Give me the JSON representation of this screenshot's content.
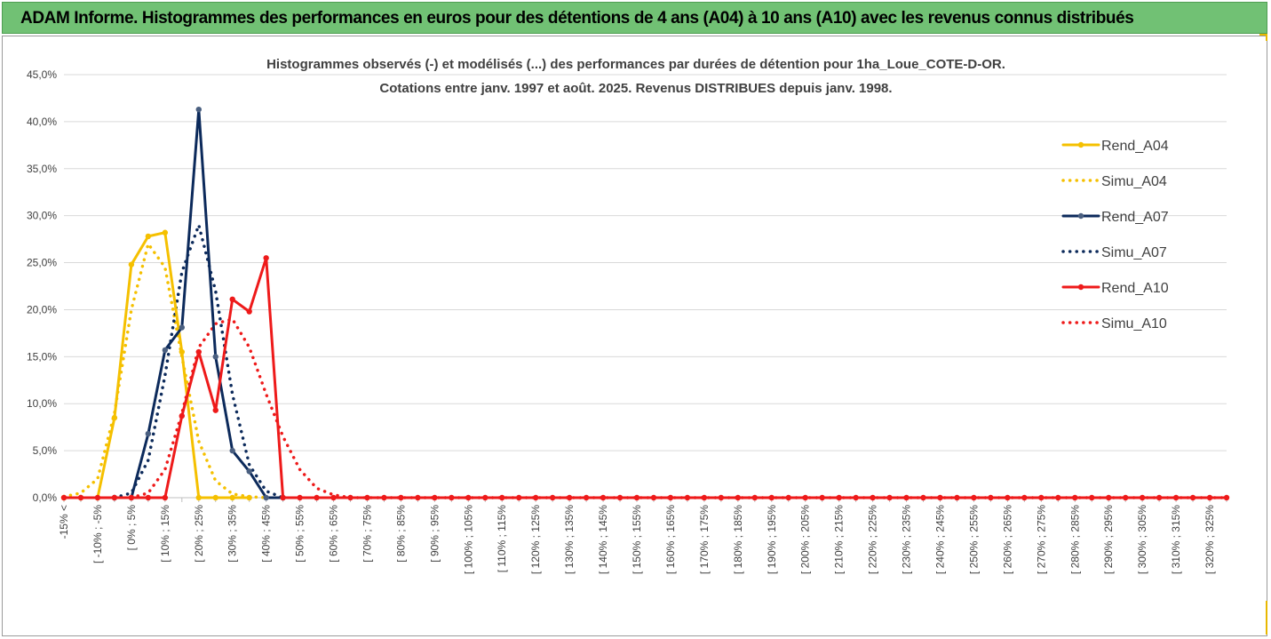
{
  "banner": {
    "title": "ADAM Informe. Histogrammes des performances en euros pour des détentions de 4 ans (A04) à 10 ans (A10) avec les revenus connus distribués"
  },
  "chart_data": {
    "type": "line",
    "title": "Histogrammes observés (-) et modélisés (...) des performances par durées de détention pour 1ha_Loue_COTE-D-OR.",
    "subtitle": "Cotations entre janv. 1997 et août. 2025. Revenus DISTRIBUES depuis janv. 1998.",
    "xlabel": "",
    "ylabel": "",
    "ylim": [
      0,
      45
    ],
    "y_ticks": [
      "0,0%",
      "5,0%",
      "10,0%",
      "15,0%",
      "20,0%",
      "25,0%",
      "30,0%",
      "35,0%",
      "40,0%",
      "45,0%"
    ],
    "grid": true,
    "legend_position": "right",
    "categories": [
      "-15% <",
      "[ -10% ; -5%",
      "[ 0% ; 5%",
      "[ 10% ; 15%",
      "[ 20% ; 25%",
      "[ 30% ; 35%",
      "[ 40% ; 45%",
      "[ 50% ; 55%",
      "[ 60% ; 65%",
      "[ 70% ; 75%",
      "[ 80% ; 85%",
      "[ 90% ; 95%",
      "[ 100% ; 105%",
      "[ 110% ; 115%",
      "[ 120% ; 125%",
      "[ 130% ; 135%",
      "[ 140% ; 145%",
      "[ 150% ; 155%",
      "[ 160% ; 165%",
      "[ 170% ; 175%",
      "[ 180% ; 185%",
      "[ 190% ; 195%",
      "[ 200% ; 205%",
      "[ 210% ; 215%",
      "[ 220% ; 225%",
      "[ 230% ; 235%",
      "[ 240% ; 245%",
      "[ 250% ; 255%",
      "[ 260% ; 265%",
      "[ 270% ; 275%",
      "[ 280% ; 285%",
      "[ 290% ; 295%",
      "[ 300% ; 305%",
      "[ 310% ; 315%",
      "[ 320% ; 325%"
    ],
    "x_values": [
      -15,
      -10,
      -5,
      0,
      5,
      10,
      15,
      20,
      25,
      30,
      35,
      40,
      45,
      50,
      55,
      60,
      65,
      70,
      75,
      80,
      85,
      90,
      95,
      100,
      105,
      110,
      115,
      120,
      125,
      130,
      135,
      140,
      145,
      150,
      155,
      160,
      165,
      170,
      175,
      180,
      185,
      190,
      195,
      200,
      205,
      210,
      215,
      220,
      225,
      230,
      235,
      240,
      245,
      250,
      255,
      260,
      265,
      270,
      275,
      280,
      285,
      290,
      295,
      300,
      305,
      310,
      315,
      320,
      325,
      330
    ],
    "series": [
      {
        "name": "Rend_A04",
        "color": "#f5c000",
        "style": "solid",
        "markers": true,
        "points": [
          [
            -15,
            0
          ],
          [
            -10,
            0
          ],
          [
            -5,
            0
          ],
          [
            0,
            8.5
          ],
          [
            5,
            24.8
          ],
          [
            10,
            27.8
          ],
          [
            15,
            28.2
          ],
          [
            20,
            15.5
          ],
          [
            25,
            0
          ],
          [
            30,
            0
          ],
          [
            35,
            0
          ],
          [
            40,
            0
          ]
        ]
      },
      {
        "name": "Simu_A04",
        "color": "#f5c000",
        "style": "dotted",
        "markers": false,
        "points": [
          [
            -15,
            0.1
          ],
          [
            -10,
            0.5
          ],
          [
            -5,
            2
          ],
          [
            0,
            9
          ],
          [
            5,
            20
          ],
          [
            10,
            27
          ],
          [
            15,
            24.5
          ],
          [
            20,
            15
          ],
          [
            25,
            6
          ],
          [
            30,
            1.8
          ],
          [
            35,
            0.4
          ],
          [
            40,
            0.1
          ],
          [
            45,
            0
          ]
        ]
      },
      {
        "name": "Rend_A07",
        "color": "#0c2a5b",
        "style": "solid",
        "markers": true,
        "points": [
          [
            0,
            0
          ],
          [
            5,
            0
          ],
          [
            10,
            6.8
          ],
          [
            15,
            15.7
          ],
          [
            20,
            18.1
          ],
          [
            25,
            41.3
          ],
          [
            30,
            15
          ],
          [
            35,
            5
          ],
          [
            40,
            2.8
          ],
          [
            45,
            0
          ],
          [
            50,
            0
          ]
        ]
      },
      {
        "name": "Simu_A07",
        "color": "#0c2a5b",
        "style": "dotted",
        "markers": false,
        "points": [
          [
            0,
            0
          ],
          [
            5,
            0.5
          ],
          [
            10,
            4
          ],
          [
            15,
            13
          ],
          [
            20,
            24
          ],
          [
            25,
            29
          ],
          [
            30,
            22
          ],
          [
            35,
            11
          ],
          [
            40,
            3.5
          ],
          [
            45,
            0.7
          ],
          [
            50,
            0
          ]
        ]
      },
      {
        "name": "Rend_A10",
        "color": "#ee1a1a",
        "style": "solid",
        "markers": true,
        "points": [
          [
            -15,
            0
          ],
          [
            -10,
            0
          ],
          [
            -5,
            0
          ],
          [
            0,
            0
          ],
          [
            5,
            0
          ],
          [
            10,
            0
          ],
          [
            15,
            0
          ],
          [
            20,
            8.7
          ],
          [
            25,
            15.5
          ],
          [
            30,
            9.3
          ],
          [
            35,
            21.1
          ],
          [
            40,
            19.8
          ],
          [
            45,
            25.5
          ],
          [
            50,
            0
          ],
          [
            55,
            0
          ],
          [
            60,
            0
          ],
          [
            65,
            0
          ],
          [
            70,
            0
          ],
          [
            75,
            0
          ],
          [
            80,
            0
          ],
          [
            85,
            0
          ],
          [
            90,
            0
          ],
          [
            95,
            0
          ],
          [
            100,
            0
          ],
          [
            105,
            0
          ],
          [
            110,
            0
          ],
          [
            115,
            0
          ],
          [
            120,
            0
          ],
          [
            125,
            0
          ],
          [
            130,
            0
          ],
          [
            135,
            0
          ],
          [
            140,
            0
          ],
          [
            145,
            0
          ],
          [
            150,
            0
          ],
          [
            155,
            0
          ],
          [
            160,
            0
          ],
          [
            165,
            0
          ],
          [
            170,
            0
          ],
          [
            175,
            0
          ],
          [
            180,
            0
          ],
          [
            185,
            0
          ],
          [
            190,
            0
          ],
          [
            195,
            0
          ],
          [
            200,
            0
          ],
          [
            205,
            0
          ],
          [
            210,
            0
          ],
          [
            215,
            0
          ],
          [
            220,
            0
          ],
          [
            225,
            0
          ],
          [
            230,
            0
          ],
          [
            235,
            0
          ],
          [
            240,
            0
          ],
          [
            245,
            0
          ],
          [
            250,
            0
          ],
          [
            255,
            0
          ],
          [
            260,
            0
          ],
          [
            265,
            0
          ],
          [
            270,
            0
          ],
          [
            275,
            0
          ],
          [
            280,
            0
          ],
          [
            285,
            0
          ],
          [
            290,
            0
          ],
          [
            295,
            0
          ],
          [
            300,
            0
          ],
          [
            305,
            0
          ],
          [
            310,
            0
          ],
          [
            315,
            0
          ],
          [
            320,
            0
          ],
          [
            325,
            0
          ],
          [
            330,
            0
          ]
        ]
      },
      {
        "name": "Simu_A10",
        "color": "#ee1a1a",
        "style": "dotted",
        "markers": false,
        "points": [
          [
            5,
            0
          ],
          [
            10,
            0.5
          ],
          [
            15,
            3
          ],
          [
            20,
            9
          ],
          [
            25,
            16
          ],
          [
            30,
            18.5
          ],
          [
            35,
            19
          ],
          [
            40,
            16
          ],
          [
            45,
            11
          ],
          [
            50,
            6.5
          ],
          [
            55,
            3
          ],
          [
            60,
            1
          ],
          [
            65,
            0.3
          ],
          [
            70,
            0
          ],
          [
            330,
            0
          ]
        ]
      }
    ]
  }
}
